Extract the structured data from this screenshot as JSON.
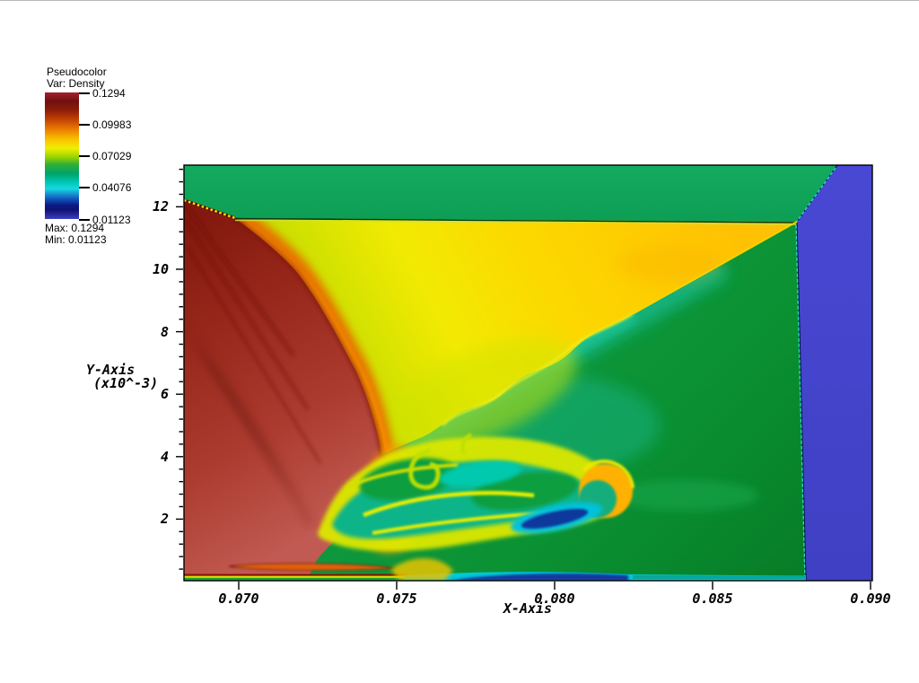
{
  "legend": {
    "title": "Pseudocolor",
    "var_label": "Var: Density",
    "tick_labels": [
      "0.1294",
      "0.09983",
      "0.07029",
      "0.04076",
      "0.01123"
    ],
    "max_label": "Max: 0.1294",
    "min_label": "Min: 0.01123"
  },
  "axes": {
    "x_title": "X-Axis",
    "y_title": "Y-Axis",
    "y_scale": "(x10^-3)",
    "x_tick_labels": [
      "0.070",
      "0.075",
      "0.080",
      "0.085",
      "0.090"
    ],
    "y_tick_labels": [
      "2",
      "4",
      "6",
      "8",
      "10",
      "12"
    ]
  },
  "chart_data": {
    "type": "heatmap",
    "title": "Pseudocolor plot",
    "variable": "Density",
    "xlabel": "X-Axis",
    "ylabel": "Y-Axis (x10^-3)",
    "xlim": [
      0.0683,
      0.0901
    ],
    "ylim": [
      0,
      13.3
    ],
    "x_tick_values": [
      0.07,
      0.075,
      0.08,
      0.085,
      0.09
    ],
    "y_tick_values": [
      2,
      4,
      6,
      8,
      10,
      12
    ],
    "x_minor_step": 0.0005,
    "y_minor_step": 0.4,
    "grid": false,
    "colorbar": {
      "min": 0.01123,
      "max": 0.1294,
      "tick_values": [
        0.1294,
        0.09983,
        0.07029,
        0.04076,
        0.01123
      ],
      "palette_top_to_bottom": [
        "#a52030",
        "#70100f",
        "#c64504",
        "#ef8300",
        "#f8c100",
        "#f0ee02",
        "#9cd400",
        "#2fae38",
        "#00a46a",
        "#00c7b5",
        "#16d8e0",
        "#1565c5",
        "#0a1a86",
        "#3c3fc0"
      ]
    },
    "features": [
      {
        "name": "top-green-band",
        "approx_density": 0.066,
        "color": "#11a55c",
        "extent": "full width above y=12"
      },
      {
        "name": "right-blue-column",
        "approx_density": 0.012,
        "color": "#4646cc",
        "extent": "x>0.0880"
      },
      {
        "name": "left-dark-red-wedge",
        "approx_density": 0.122,
        "color": "#9c2d18",
        "extent": "x<0.074, fan of shocks"
      },
      {
        "name": "brick-red-lower-left",
        "approx_density": 0.115,
        "color": "#bb4f48",
        "extent": "near floor, x<0.073"
      },
      {
        "name": "amber-yellow-wedge",
        "approx_density": 0.09,
        "color": "#ffc103",
        "extent": "center, between red wedge and slip line"
      },
      {
        "name": "dark-green-region",
        "approx_density": 0.06,
        "color": "#0a9132",
        "extent": "right of slip line"
      },
      {
        "name": "teal-shear-layer",
        "approx_density": 0.047,
        "color": "#14b98d",
        "extent": "below slip line"
      },
      {
        "name": "vortex-rollup-street",
        "approx_density": 0.055,
        "color": "#0b9e3f",
        "extent": "y<4, 0.073<x<0.082, yellow-rimmed"
      },
      {
        "name": "orange-crescent-vortex",
        "approx_density": 0.098,
        "color": "#ffb005",
        "extent": "near x=0.0815, y=2.8"
      },
      {
        "name": "navy-low-density-pocket",
        "approx_density": 0.022,
        "color": "#10389c",
        "extent": "near x=0.080, y=1.8 and along floor"
      },
      {
        "name": "cyan-floor-strip",
        "approx_density": 0.04,
        "color": "#00c8d8",
        "extent": "y<0.3, 0.0755<x<0.0880"
      }
    ]
  }
}
